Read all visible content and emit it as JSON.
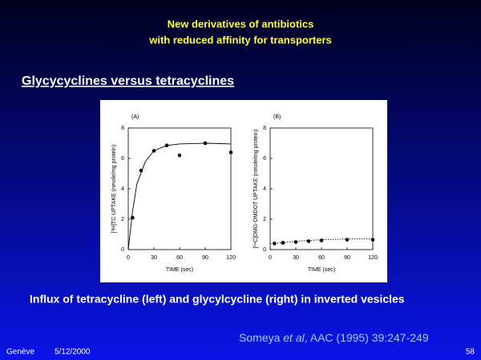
{
  "slide": {
    "title_lines": [
      "New derivatives of antibiotics",
      "with reduced affinity for transporters"
    ],
    "heading": "Glycycyclines versus tetracyclines",
    "caption": "Influx of tetracycline (left) and glycylcycline (right) in inverted vesicles",
    "citation": {
      "pre": "Someya ",
      "italic": "et al",
      "post": ", AAC (1995) 39:247-249"
    },
    "footer": {
      "place": "Genève",
      "date": "5/12/2000",
      "page": "58"
    }
  },
  "chart_data": [
    {
      "type": "scatter",
      "panel_label": "(A)",
      "xlabel": "TIME (sec)",
      "ylabel": "[³H]TC UPTAKE (nmole/mg protein)",
      "xlim": [
        0,
        120
      ],
      "ylim": [
        0,
        8
      ],
      "xticks": [
        0,
        30,
        60,
        90,
        120
      ],
      "yticks": [
        0,
        2,
        4,
        6,
        8
      ],
      "series": [
        {
          "mode": "markers",
          "color": "#000000",
          "x": [
            5,
            15,
            30,
            45,
            60,
            90,
            120
          ],
          "values": [
            2.1,
            5.2,
            6.5,
            6.85,
            6.2,
            7.0,
            6.4
          ]
        },
        {
          "mode": "line",
          "color": "#000000",
          "x": [
            0,
            5,
            10,
            20,
            30,
            45,
            60,
            90,
            120
          ],
          "values": [
            0,
            2.5,
            4.3,
            5.8,
            6.5,
            6.85,
            6.95,
            7.0,
            6.95
          ]
        }
      ]
    },
    {
      "type": "scatter",
      "panel_label": "(B)",
      "xlabel": "TIME (sec)",
      "ylabel": "[¹⁴C]DMG-DMDOT UPTAKE (nmole/mg protein)",
      "xlim": [
        0,
        120
      ],
      "ylim": [
        0,
        8
      ],
      "xticks": [
        0,
        30,
        60,
        90,
        120
      ],
      "yticks": [
        0,
        2,
        4,
        6,
        8
      ],
      "series": [
        {
          "mode": "markers",
          "color": "#000000",
          "x": [
            5,
            15,
            30,
            45,
            60,
            90,
            120
          ],
          "values": [
            0.4,
            0.45,
            0.5,
            0.55,
            0.6,
            0.65,
            0.65
          ]
        },
        {
          "mode": "dotted",
          "color": "#000000",
          "x": [
            0,
            15,
            30,
            60,
            90,
            120
          ],
          "values": [
            0.4,
            0.45,
            0.55,
            0.65,
            0.7,
            0.7
          ]
        }
      ]
    }
  ]
}
